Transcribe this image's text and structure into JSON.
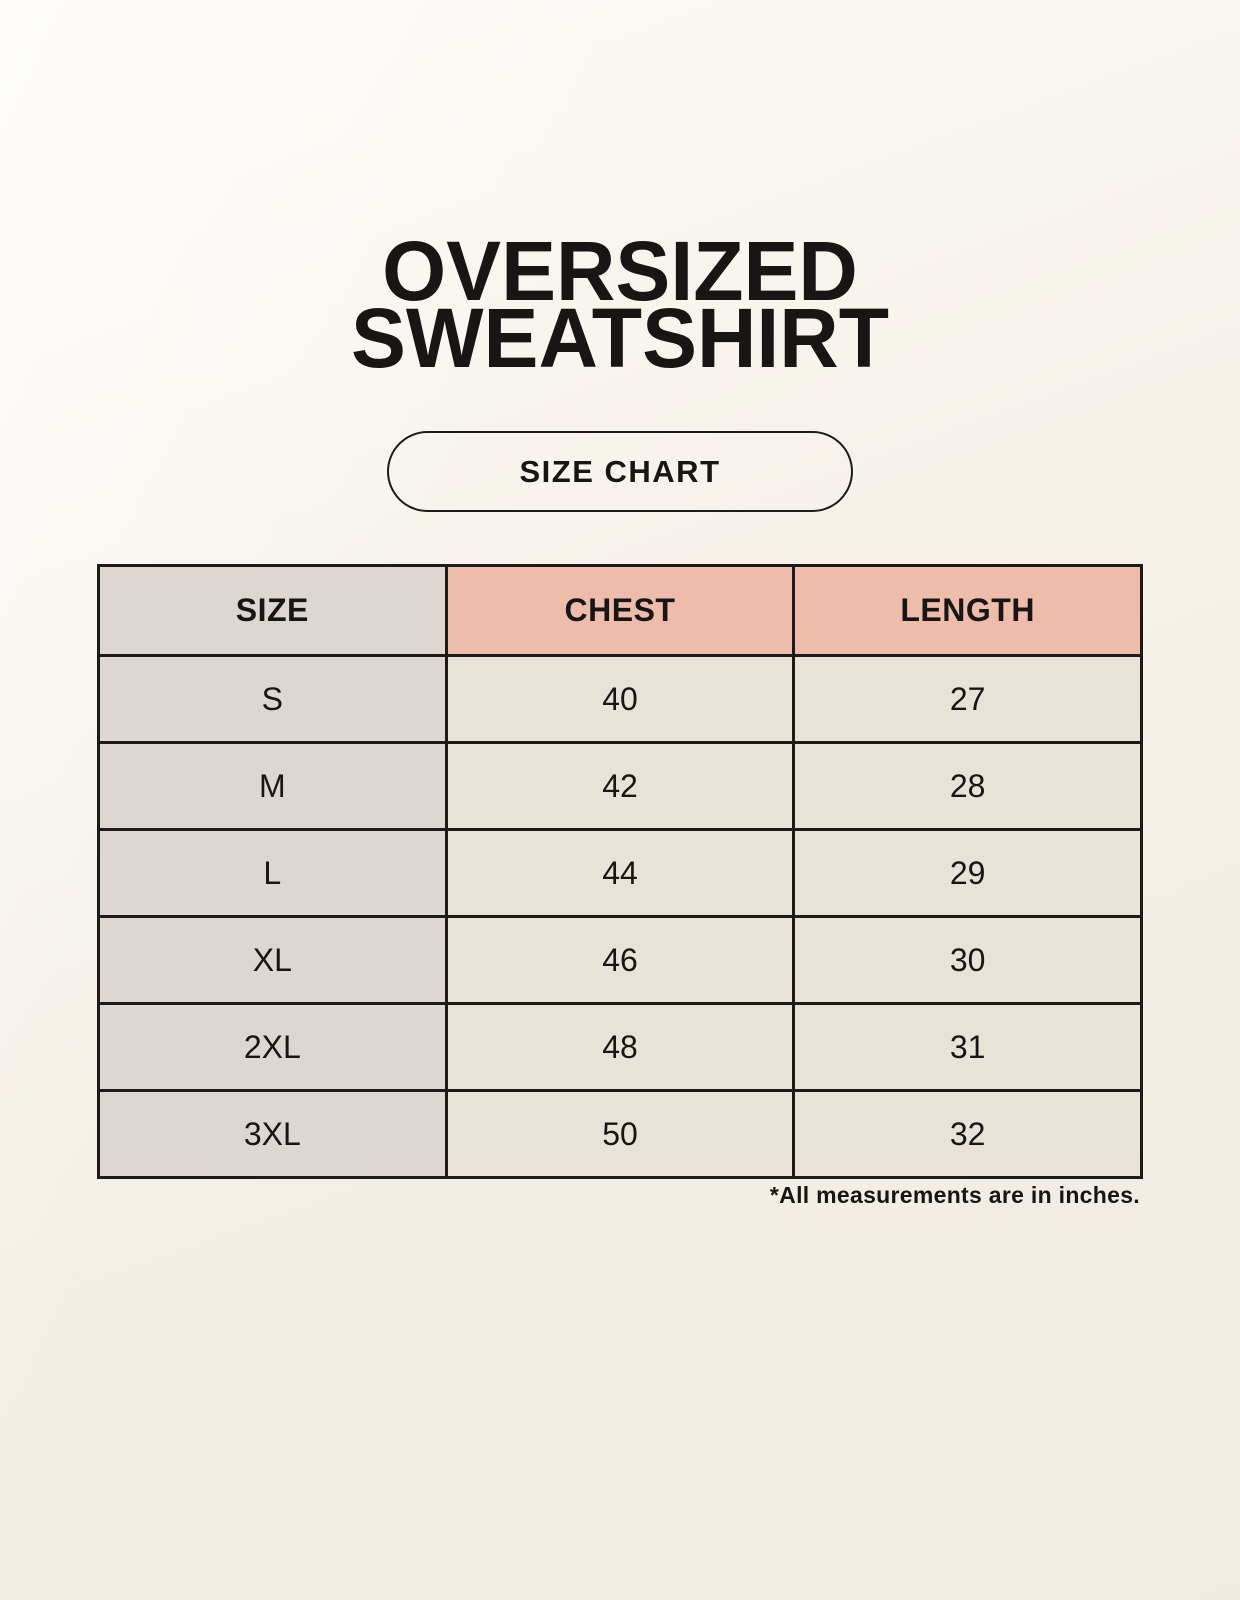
{
  "page": {
    "title_line1": "OVERSIZED",
    "title_line2": "SWEATSHIRT",
    "button_label": "SIZE CHART",
    "footnote": "*All measurements are in inches."
  },
  "colors": {
    "background": "#f8f4ec",
    "cell_gray": "#ddd6d1",
    "cell_pink": "#edbcab",
    "cell_cream": "#e9e2d7",
    "border_color": "#1c1b1a",
    "text_color": "#171614"
  },
  "chart_data": {
    "type": "table",
    "title": "OVERSIZED SWEATSHIRT",
    "columns": [
      "SIZE",
      "CHEST",
      "LENGTH"
    ],
    "rows": [
      [
        "S",
        "40",
        "27"
      ],
      [
        "M",
        "42",
        "28"
      ],
      [
        "L",
        "44",
        "29"
      ],
      [
        "XL",
        "46",
        "30"
      ],
      [
        "2XL",
        "48",
        "31"
      ],
      [
        "3XL",
        "50",
        "32"
      ]
    ],
    "note": "*All measurements are in inches.",
    "units": "inches"
  }
}
